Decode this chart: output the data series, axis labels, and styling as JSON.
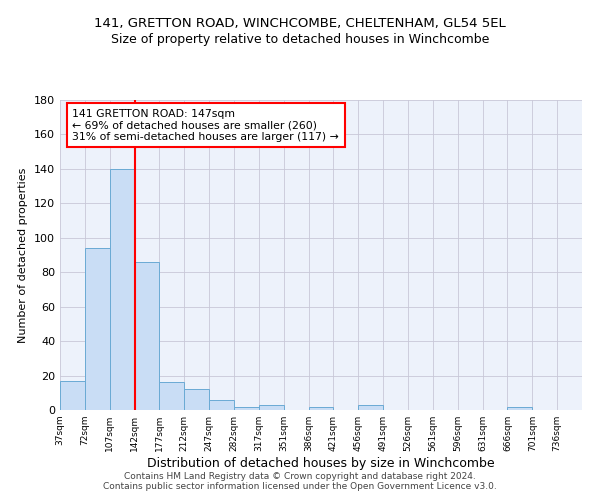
{
  "title_line1": "141, GRETTON ROAD, WINCHCOMBE, CHELTENHAM, GL54 5EL",
  "title_line2": "Size of property relative to detached houses in Winchcombe",
  "xlabel": "Distribution of detached houses by size in Winchcombe",
  "ylabel": "Number of detached properties",
  "footer_line1": "Contains HM Land Registry data © Crown copyright and database right 2024.",
  "footer_line2": "Contains public sector information licensed under the Open Government Licence v3.0.",
  "bin_labels": [
    "37sqm",
    "72sqm",
    "107sqm",
    "142sqm",
    "177sqm",
    "212sqm",
    "247sqm",
    "282sqm",
    "317sqm",
    "351sqm",
    "386sqm",
    "421sqm",
    "456sqm",
    "491sqm",
    "526sqm",
    "561sqm",
    "596sqm",
    "631sqm",
    "666sqm",
    "701sqm",
    "736sqm"
  ],
  "bar_heights": [
    17,
    94,
    140,
    86,
    16,
    12,
    6,
    2,
    3,
    0,
    2,
    0,
    3,
    0,
    0,
    0,
    0,
    0,
    2,
    0,
    0
  ],
  "bar_color": "#c9ddf5",
  "bar_edge_color": "#6aaad4",
  "grid_color": "#c8c8d8",
  "vline_color": "red",
  "vline_x": 3,
  "annotation_text": "141 GRETTON ROAD: 147sqm\n← 69% of detached houses are smaller (260)\n31% of semi-detached houses are larger (117) →",
  "annotation_box_color": "white",
  "annotation_box_edge_color": "red",
  "ylim": [
    0,
    180
  ],
  "yticks": [
    0,
    20,
    40,
    60,
    80,
    100,
    120,
    140,
    160,
    180
  ],
  "bg_color": "#edf2fb",
  "title_fontsize": 9.5,
  "subtitle_fontsize": 9,
  "annotation_fontsize": 7.8,
  "ylabel_fontsize": 8,
  "xlabel_fontsize": 9,
  "footer_fontsize": 6.5,
  "ytick_fontsize": 8,
  "xtick_fontsize": 6.5
}
